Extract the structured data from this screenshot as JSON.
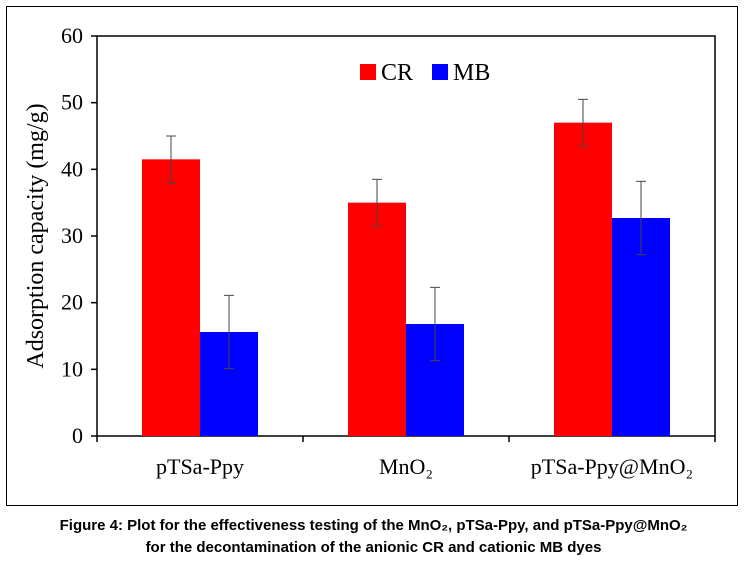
{
  "chart_data": {
    "type": "bar",
    "title": "",
    "xlabel": "",
    "ylabel": "Adsorption capacity (mg/g)",
    "ylim": [
      0,
      60
    ],
    "yticks": [
      "0",
      "10",
      "20",
      "30",
      "40",
      "50",
      "60"
    ],
    "categories": [
      "pTSa-Ppy",
      "MnO₂",
      "pTSa-Ppy@MnO₂"
    ],
    "series": [
      {
        "name": "CR",
        "color": "#ff0000",
        "values": [
          41.5,
          35.0,
          47.0
        ],
        "errors": [
          3.5,
          3.5,
          3.5
        ]
      },
      {
        "name": "MB",
        "color": "#0000ff",
        "values": [
          15.6,
          16.8,
          32.7
        ],
        "errors": [
          5.5,
          5.5,
          5.5
        ]
      }
    ],
    "legend_position": "top-center",
    "grid": false
  },
  "caption": {
    "line1": "Figure 4: Plot for the effectiveness testing of the MnO₂, pTSa-Ppy, and pTSa-Ppy@MnO₂",
    "line2": "for the decontamination of the anionic CR and cationic MB dyes"
  }
}
